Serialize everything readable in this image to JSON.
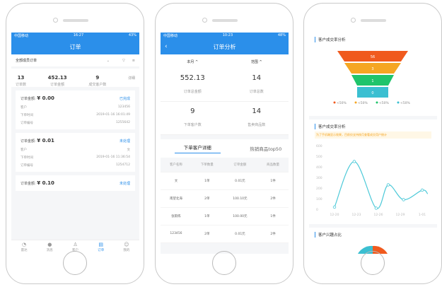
{
  "phone1": {
    "status": {
      "carrier": "中国移动",
      "time": "16:27",
      "battery": "43%"
    },
    "title": "订单",
    "filter": "全部成员订单",
    "summary": [
      {
        "value": "13",
        "label": "订单数"
      },
      {
        "value": "452.13",
        "label": "订单金额"
      },
      {
        "value": "9",
        "label": "成交客户数"
      }
    ],
    "detail": "详细",
    "orders": [
      {
        "amount_label": "订单金额:",
        "amount": "¥ 0.00",
        "status": "已完成",
        "customer_label": "客户",
        "customer": "123456",
        "time_label": "下单时间",
        "time": "2019-01-16 16:01:49",
        "no_label": "订单编号",
        "no": "1255642"
      },
      {
        "amount_label": "订单金额:",
        "amount": "¥ 0.01",
        "status": "未处理",
        "customer_label": "客户",
        "customer": "文",
        "time_label": "下单时间",
        "time": "2019-01-16 11:36:54",
        "no_label": "订单编号",
        "no": "1254712"
      },
      {
        "amount_label": "订单金额:",
        "amount": "¥ 0.10",
        "status": "未处理"
      }
    ],
    "tabs": [
      "雷达",
      "消息",
      "客户",
      "订单",
      "我的"
    ]
  },
  "phone2": {
    "status": {
      "carrier": "中国移动",
      "time": "10:23",
      "battery": "48%"
    },
    "title": "订单分析",
    "filter_month": "本月",
    "filter_range": "范围",
    "stats": [
      {
        "value": "552.13",
        "label": "订单总金额"
      },
      {
        "value": "14",
        "label": "订单总数"
      },
      {
        "value": "9",
        "label": "下单客户数"
      },
      {
        "value": "14",
        "label": "售卖商品数"
      }
    ],
    "tabs": [
      "下单客户详细",
      "热销商品top50"
    ],
    "table": {
      "headers": [
        "客户名称",
        "下单数量",
        "订单金额",
        "商品数量"
      ],
      "rows": [
        [
          "文",
          "1单",
          "0.01元",
          "1件"
        ],
        [
          "南望北海",
          "2单",
          "100.10元",
          "2件"
        ],
        [
          "张雨练",
          "1单",
          "100.00元",
          "1件"
        ],
        [
          "123456",
          "2单",
          "0.01元",
          "2件"
        ]
      ]
    }
  },
  "phone3": {
    "funnel_title": "客户成交率分析",
    "funnel": [
      {
        "value": "56",
        "color": "#f05a1e"
      },
      {
        "value": "3",
        "color": "#f5a623"
      },
      {
        "value": "1",
        "color": "#1fc46b"
      },
      {
        "value": "0",
        "color": "#3bbfd1"
      }
    ],
    "legend": [
      "<50%",
      "<50%",
      "<50%",
      "<50%"
    ],
    "line_title": "客户成交率分析",
    "notice": "为了手机端显示效果，目前仅支持按月查看成交用户统计",
    "chart_data": {
      "type": "line",
      "x": [
        "12-20",
        "12-23",
        "12-26",
        "12-29",
        "1-01"
      ],
      "xpos": [
        0,
        1,
        2,
        3,
        4
      ],
      "points": [
        [
          0,
          20
        ],
        [
          0.9,
          450
        ],
        [
          1.9,
          10
        ],
        [
          2.45,
          230
        ],
        [
          3.15,
          90
        ],
        [
          4,
          180
        ],
        [
          4.25,
          145
        ]
      ],
      "ylim": [
        0,
        600
      ],
      "yticks": [
        0,
        100,
        200,
        300,
        400,
        500,
        600
      ],
      "color": "#4cc9d8"
    },
    "interest_title": "客户兴趣占比"
  }
}
